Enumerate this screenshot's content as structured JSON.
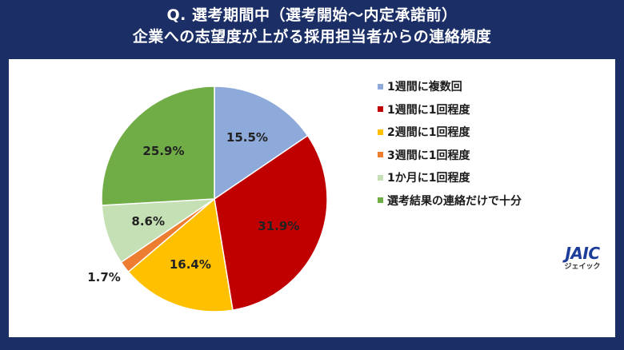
{
  "header": {
    "title_line1": "Q. 選考期間中（選考開始～内定承諾前）",
    "title_line2": "企業への志望度が上がる採用担当者からの連絡頻度"
  },
  "logo": {
    "main": "JAIC",
    "sub": "ジェイック"
  },
  "chart_data": {
    "type": "pie",
    "title": "Q. 選考期間中（選考開始～内定承諾前） 企業への志望度が上がる採用担当者からの連絡頻度",
    "categories": [
      "1週間に複数回",
      "1週間に1回程度",
      "2週間に1回程度",
      "3週間に1回程度",
      "1か月に1回程度",
      "選考結果の連絡だけで十分"
    ],
    "values": [
      15.5,
      31.9,
      16.4,
      1.7,
      8.6,
      25.9
    ],
    "labels": [
      "15.5%",
      "31.9%",
      "16.4%",
      "1.7%",
      "8.6%",
      "25.9%"
    ],
    "colors": [
      "#8eaadb",
      "#c00000",
      "#ffc000",
      "#ed7d31",
      "#c5e0b4",
      "#70ad47"
    ],
    "start_angle": "12 o'clock, clockwise",
    "legend_position": "right"
  },
  "legend": {
    "items": [
      {
        "label": "1週間に複数回",
        "color": "#8eaadb"
      },
      {
        "label": "1週間に1回程度",
        "color": "#c00000"
      },
      {
        "label": "2週間に1回程度",
        "color": "#ffc000"
      },
      {
        "label": "3週間に1回程度",
        "color": "#ed7d31"
      },
      {
        "label": "1か月に1回程度",
        "color": "#c5e0b4"
      },
      {
        "label": "選考結果の連絡だけで十分",
        "color": "#70ad47"
      }
    ]
  }
}
